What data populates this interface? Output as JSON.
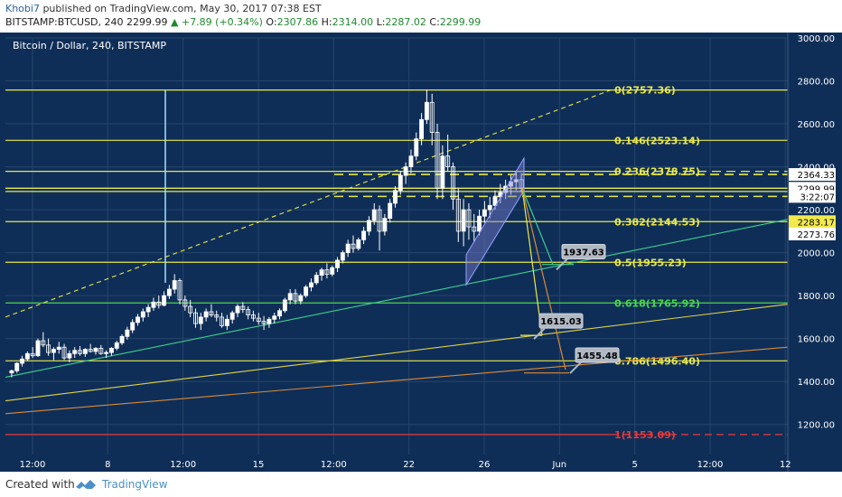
{
  "header": {
    "author": "Khobi7",
    "published_text": "published on TradingView.com, May 30, 2017 07:38 EST",
    "symbol": "BITSTAMP:BTCUSD, 240",
    "last": "2299.99",
    "change": "▲ +7.89 (+0.34%)",
    "o_label": "O:",
    "o_value": "2307.86",
    "h_label": "H:",
    "h_value": "2314.00",
    "l_label": "L:",
    "l_value": "2287.02",
    "c_label": "C:",
    "c_value": "2299.99"
  },
  "footer": {
    "created_with": "Created with",
    "brand": "TradingView"
  },
  "colors": {
    "background": "#0f2e57",
    "grid": "#25456c",
    "candle": "#ffffff",
    "fib_yellow": "#e8e84a",
    "fib_green": "#4cd64c",
    "fib_red": "#e83a3a",
    "trend_green": "#3ecf8e",
    "trend_yellow": "#e0d24a",
    "trend_orange": "#d98a3a",
    "channel_fill": "#7b7fd0",
    "callout": "#b0b8c4"
  },
  "chart_data": {
    "type": "candlestick",
    "title": "Bitcoin / Dollar, 240, BITSTAMP",
    "y_ticks": [
      1200,
      1400,
      1600,
      1800,
      2000,
      2200,
      2400,
      2600,
      2800,
      3000
    ],
    "y_tick_labels": [
      "1200.00",
      "1400.00",
      "1600.00",
      "1800.00",
      "2000.00",
      "2200.00",
      "2400.00",
      "2600.00",
      "2800.00",
      "3000.00"
    ],
    "ylim": [
      1060,
      3000
    ],
    "x_tick_labels": [
      "12:00",
      "8",
      "12:00",
      "15",
      "12:00",
      "22",
      "26",
      "Jun",
      "5",
      "12:00",
      "12"
    ],
    "fib_levels": [
      {
        "ratio": "0",
        "price": 2757.36,
        "label": "0(2757.36)",
        "color": "yellow"
      },
      {
        "ratio": "0.146",
        "price": 2523.14,
        "label": "0.146(2523.14)",
        "color": "yellow"
      },
      {
        "ratio": "0.236",
        "price": 2378.75,
        "label": "0.236(2378.75)",
        "color": "yellow"
      },
      {
        "ratio": "0.382",
        "price": 2144.53,
        "label": "0.382(2144.53)",
        "color": "yellow"
      },
      {
        "ratio": "0.5",
        "price": 1955.23,
        "label": "0.5(1955.23)",
        "color": "yellow"
      },
      {
        "ratio": "0.618",
        "price": 1765.92,
        "label": "0.618(1765.92)",
        "color": "green"
      },
      {
        "ratio": "0.786",
        "price": 1496.4,
        "label": "0.786(1496.40)",
        "color": "yellow"
      },
      {
        "ratio": "1",
        "price": 1153.09,
        "label": "1(1153.09)",
        "color": "red"
      }
    ],
    "price_labels": [
      {
        "text": "2364.33",
        "price": 2364.33,
        "bg": "#ffffff",
        "fg": "#000000"
      },
      {
        "text": "2299.99",
        "price": 2299.99,
        "bg": "#ffffff",
        "fg": "#000000"
      },
      {
        "text": "3:22:07",
        "price": 2262,
        "bg": "#ffffff",
        "fg": "#000000"
      },
      {
        "text": "2283.17",
        "price": 2144.53,
        "bg": "#f2e94e",
        "fg": "#000000"
      },
      {
        "text": "2273.76",
        "price": 2087,
        "bg": "#ffffff",
        "fg": "#000000"
      }
    ],
    "callouts": [
      {
        "text": "1937.63",
        "price": 1937.63
      },
      {
        "text": "1615.03",
        "price": 1615.03
      },
      {
        "text": "1455.48",
        "price": 1455.48
      }
    ],
    "candles": [
      [
        1440,
        1455,
        1420,
        1450
      ],
      [
        1450,
        1490,
        1440,
        1485
      ],
      [
        1485,
        1520,
        1470,
        1505
      ],
      [
        1505,
        1540,
        1495,
        1530
      ],
      [
        1530,
        1560,
        1510,
        1520
      ],
      [
        1520,
        1600,
        1515,
        1590
      ],
      [
        1590,
        1630,
        1560,
        1570
      ],
      [
        1570,
        1600,
        1520,
        1535
      ],
      [
        1535,
        1560,
        1500,
        1550
      ],
      [
        1550,
        1585,
        1530,
        1560
      ],
      [
        1560,
        1575,
        1500,
        1510
      ],
      [
        1510,
        1545,
        1490,
        1530
      ],
      [
        1530,
        1560,
        1510,
        1545
      ],
      [
        1545,
        1565,
        1520,
        1530
      ],
      [
        1530,
        1555,
        1515,
        1550
      ],
      [
        1550,
        1575,
        1535,
        1540
      ],
      [
        1540,
        1560,
        1525,
        1555
      ],
      [
        1555,
        1570,
        1525,
        1530
      ],
      [
        1530,
        1545,
        1510,
        1535
      ],
      [
        1535,
        1560,
        1520,
        1555
      ],
      [
        1555,
        1590,
        1545,
        1580
      ],
      [
        1580,
        1620,
        1570,
        1610
      ],
      [
        1610,
        1655,
        1595,
        1640
      ],
      [
        1640,
        1690,
        1625,
        1675
      ],
      [
        1675,
        1715,
        1660,
        1700
      ],
      [
        1700,
        1740,
        1680,
        1725
      ],
      [
        1725,
        1760,
        1700,
        1745
      ],
      [
        1745,
        1790,
        1730,
        1770
      ],
      [
        1770,
        1800,
        1740,
        1755
      ],
      [
        1755,
        1820,
        1750,
        1800
      ],
      [
        1800,
        1850,
        1785,
        1830
      ],
      [
        1830,
        1900,
        1810,
        1870
      ],
      [
        1870,
        1880,
        1760,
        1780
      ],
      [
        1780,
        1800,
        1730,
        1750
      ],
      [
        1750,
        1780,
        1700,
        1720
      ],
      [
        1720,
        1740,
        1650,
        1670
      ],
      [
        1670,
        1720,
        1640,
        1700
      ],
      [
        1700,
        1740,
        1680,
        1725
      ],
      [
        1725,
        1760,
        1700,
        1710
      ],
      [
        1710,
        1730,
        1680,
        1700
      ],
      [
        1700,
        1720,
        1650,
        1660
      ],
      [
        1660,
        1710,
        1640,
        1690
      ],
      [
        1690,
        1730,
        1670,
        1720
      ],
      [
        1720,
        1760,
        1700,
        1750
      ],
      [
        1750,
        1770,
        1720,
        1735
      ],
      [
        1735,
        1750,
        1690,
        1710
      ],
      [
        1710,
        1730,
        1680,
        1695
      ],
      [
        1695,
        1720,
        1665,
        1680
      ],
      [
        1680,
        1705,
        1640,
        1670
      ],
      [
        1670,
        1700,
        1650,
        1690
      ],
      [
        1690,
        1720,
        1670,
        1705
      ],
      [
        1705,
        1740,
        1690,
        1730
      ],
      [
        1730,
        1790,
        1720,
        1780
      ],
      [
        1780,
        1830,
        1760,
        1810
      ],
      [
        1810,
        1830,
        1760,
        1775
      ],
      [
        1775,
        1810,
        1760,
        1800
      ],
      [
        1800,
        1850,
        1790,
        1840
      ],
      [
        1840,
        1880,
        1820,
        1860
      ],
      [
        1860,
        1910,
        1850,
        1895
      ],
      [
        1895,
        1930,
        1870,
        1920
      ],
      [
        1920,
        1950,
        1880,
        1900
      ],
      [
        1900,
        1940,
        1890,
        1930
      ],
      [
        1930,
        1980,
        1910,
        1965
      ],
      [
        1965,
        2010,
        1950,
        2000
      ],
      [
        2000,
        2060,
        1980,
        2040
      ],
      [
        2040,
        2080,
        2000,
        2020
      ],
      [
        2020,
        2070,
        2010,
        2060
      ],
      [
        2060,
        2120,
        2040,
        2100
      ],
      [
        2100,
        2170,
        2080,
        2150
      ],
      [
        2150,
        2230,
        2130,
        2200
      ],
      [
        2200,
        2220,
        2010,
        2100
      ],
      [
        2100,
        2180,
        2080,
        2160
      ],
      [
        2160,
        2250,
        2140,
        2230
      ],
      [
        2230,
        2310,
        2210,
        2290
      ],
      [
        2290,
        2380,
        2270,
        2360
      ],
      [
        2360,
        2420,
        2320,
        2400
      ],
      [
        2400,
        2480,
        2370,
        2450
      ],
      [
        2450,
        2560,
        2430,
        2530
      ],
      [
        2530,
        2650,
        2500,
        2620
      ],
      [
        2620,
        2760,
        2600,
        2700
      ],
      [
        2700,
        2740,
        2500,
        2560
      ],
      [
        2560,
        2600,
        2250,
        2300
      ],
      [
        2300,
        2500,
        2250,
        2450
      ],
      [
        2450,
        2550,
        2380,
        2400
      ],
      [
        2400,
        2420,
        2200,
        2250
      ],
      [
        2250,
        2300,
        2050,
        2100
      ],
      [
        2100,
        2250,
        2030,
        2200
      ],
      [
        2200,
        2230,
        2060,
        2120
      ],
      [
        2120,
        2180,
        2050,
        2100
      ],
      [
        2100,
        2200,
        2080,
        2170
      ],
      [
        2170,
        2240,
        2140,
        2200
      ],
      [
        2200,
        2260,
        2160,
        2220
      ],
      [
        2220,
        2290,
        2200,
        2260
      ],
      [
        2260,
        2320,
        2230,
        2280
      ],
      [
        2280,
        2340,
        2250,
        2310
      ],
      [
        2310,
        2360,
        2270,
        2330
      ],
      [
        2330,
        2380,
        2290,
        2340
      ],
      [
        2340,
        2370,
        2280,
        2300
      ]
    ]
  }
}
